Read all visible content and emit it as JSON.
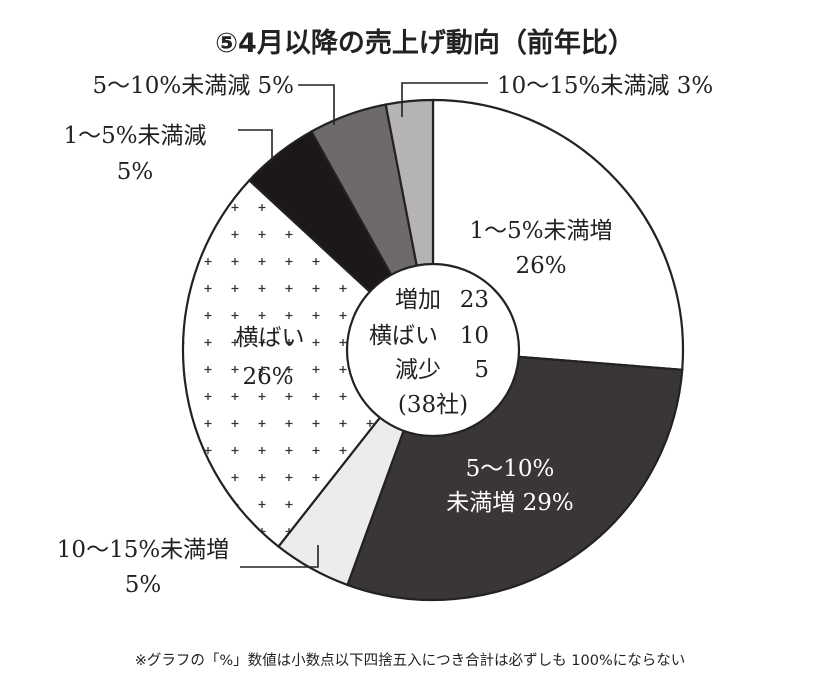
{
  "chart_data": {
    "type": "pie",
    "variant": "donut",
    "title": "⑤4月以降の売上げ動向（前年比）",
    "start_angle_deg": 0,
    "direction": "clockwise",
    "slices": [
      {
        "label_line1": "1～5%未満増",
        "label_line2": "26%",
        "value": 26,
        "fill": "#ffffff",
        "pattern": "none"
      },
      {
        "label_line1": "5～10%",
        "label_line2": "未満増 29%",
        "value": 29,
        "fill": "#3a3536",
        "pattern": "none"
      },
      {
        "label_line1": "10～15%未満増",
        "label_line2": "5%",
        "value": 5,
        "fill": "#ececec",
        "pattern": "none"
      },
      {
        "label_line1": "横ばい",
        "label_line2": "26%",
        "value": 26,
        "fill": "#ffffff",
        "pattern": "plus"
      },
      {
        "label_line1": "1～5%未満減",
        "label_line2": "5%",
        "value": 5,
        "fill": "#1c1718",
        "pattern": "none"
      },
      {
        "label_line1": "5～10%未満減 5%",
        "label_line2": "",
        "value": 5,
        "fill": "#6e6a6b",
        "pattern": "none"
      },
      {
        "label_line1": "10～15%未満減 3%",
        "label_line2": "",
        "value": 3,
        "fill": "#b5b3b3",
        "pattern": "none"
      }
    ],
    "center": {
      "rows": [
        {
          "label": "増加",
          "value": "23"
        },
        {
          "label": "横ばい",
          "value": "10"
        },
        {
          "label": "減少",
          "value": "5"
        }
      ],
      "total": "(38社)"
    },
    "footnote": "※グラフの「%」数値は小数点以下四捨五入につき合計は必ずしも 100%にならない"
  }
}
